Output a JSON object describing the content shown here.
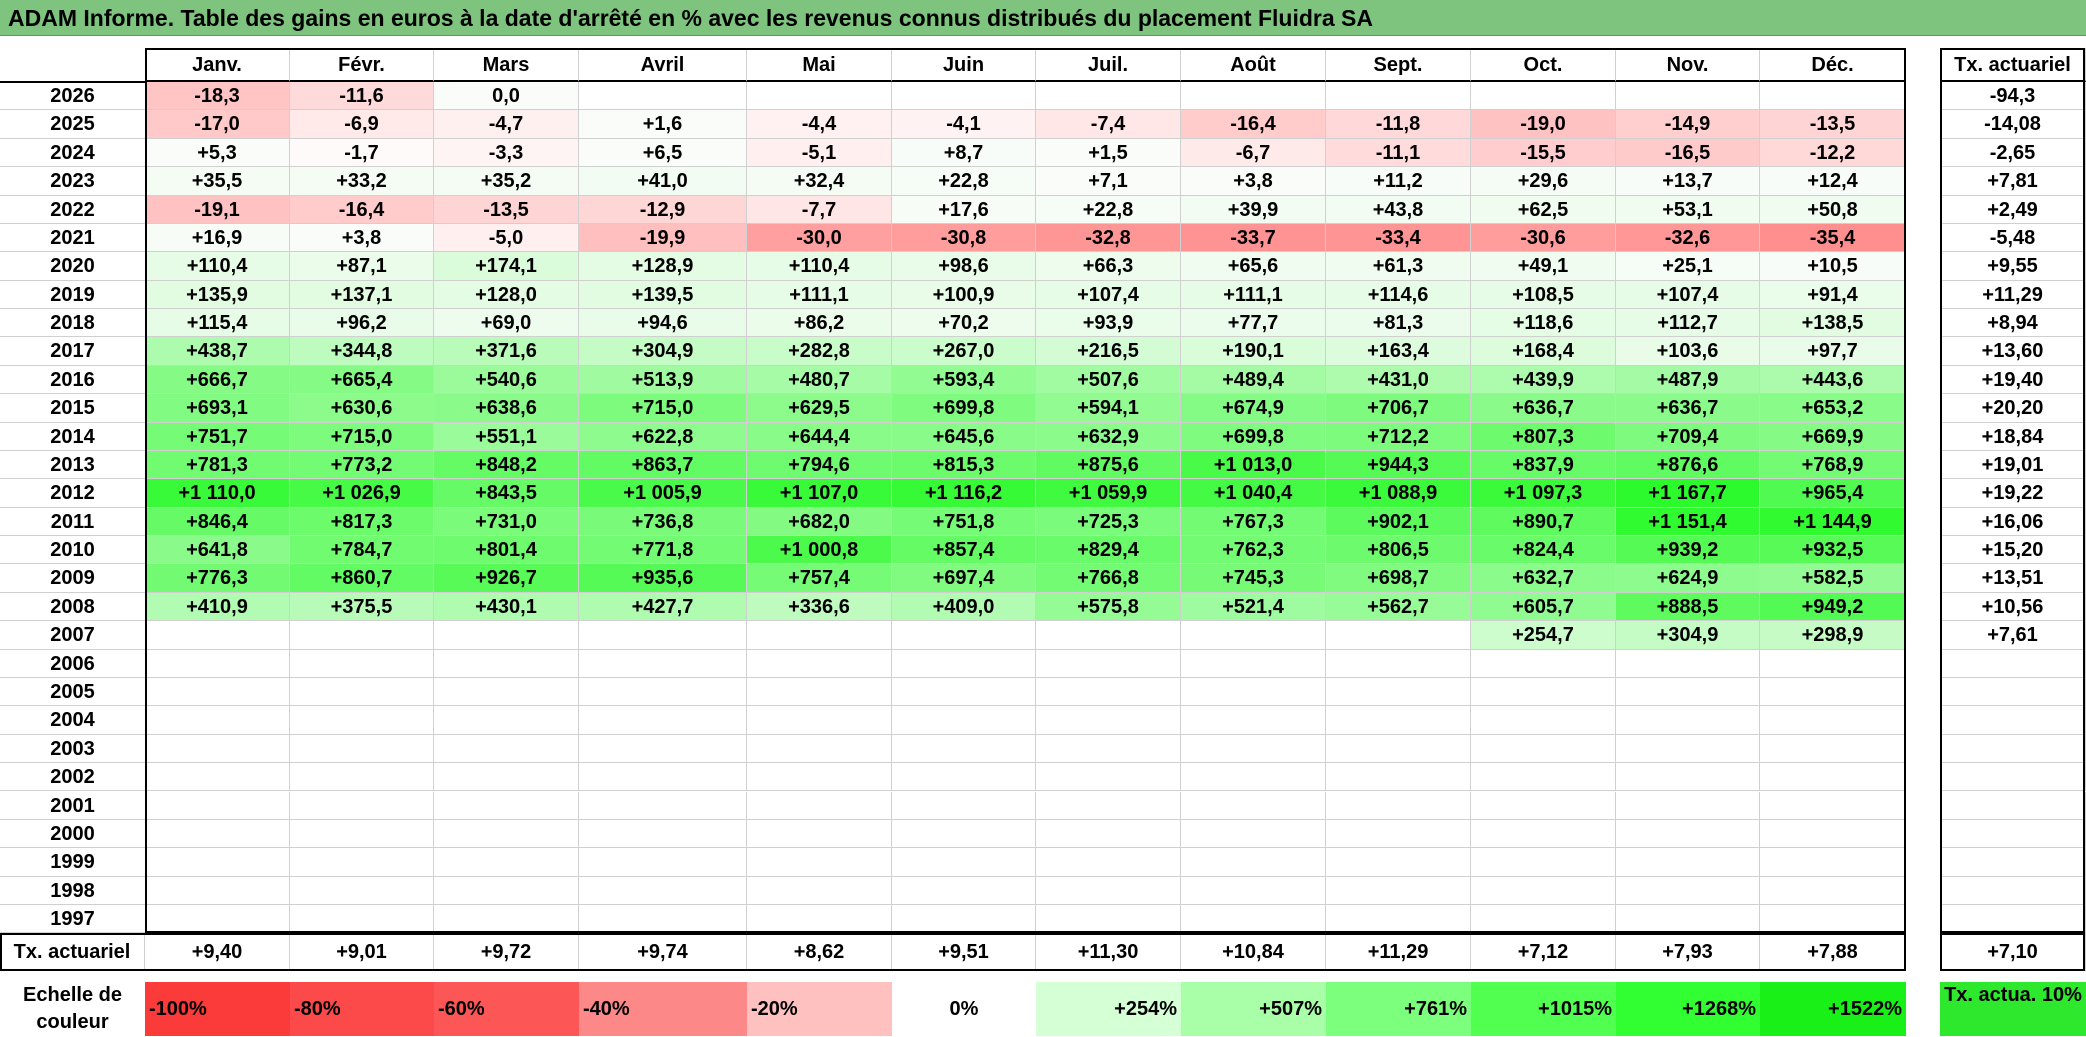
{
  "title": "ADAM Informe. Table des gains en euros à la date d'arrêté en % avec les revenus connus distribués du placement Fluidra SA",
  "months": [
    "Janv.",
    "Févr.",
    "Mars",
    "Avril",
    "Mai",
    "Juin",
    "Juil.",
    "Août",
    "Sept.",
    "Oct.",
    "Nov.",
    "Déc."
  ],
  "tx_header": "Tx. actuariel",
  "rows": [
    {
      "year": "2026",
      "values": [
        "-18,3",
        "-11,6",
        "0,0",
        "",
        "",
        "",
        "",
        "",
        "",
        "",
        "",
        ""
      ],
      "tx": "-94,3"
    },
    {
      "year": "2025",
      "values": [
        "-17,0",
        "-6,9",
        "-4,7",
        "+1,6",
        "-4,4",
        "-4,1",
        "-7,4",
        "-16,4",
        "-11,8",
        "-19,0",
        "-14,9",
        "-13,5"
      ],
      "tx": "-14,08"
    },
    {
      "year": "2024",
      "values": [
        "+5,3",
        "-1,7",
        "-3,3",
        "+6,5",
        "-5,1",
        "+8,7",
        "+1,5",
        "-6,7",
        "-11,1",
        "-15,5",
        "-16,5",
        "-12,2"
      ],
      "tx": "-2,65"
    },
    {
      "year": "2023",
      "values": [
        "+35,5",
        "+33,2",
        "+35,2",
        "+41,0",
        "+32,4",
        "+22,8",
        "+7,1",
        "+3,8",
        "+11,2",
        "+29,6",
        "+13,7",
        "+12,4"
      ],
      "tx": "+7,81"
    },
    {
      "year": "2022",
      "values": [
        "-19,1",
        "-16,4",
        "-13,5",
        "-12,9",
        "-7,7",
        "+17,6",
        "+22,8",
        "+39,9",
        "+43,8",
        "+62,5",
        "+53,1",
        "+50,8"
      ],
      "tx": "+2,49"
    },
    {
      "year": "2021",
      "values": [
        "+16,9",
        "+3,8",
        "-5,0",
        "-19,9",
        "-30,0",
        "-30,8",
        "-32,8",
        "-33,7",
        "-33,4",
        "-30,6",
        "-32,6",
        "-35,4"
      ],
      "tx": "-5,48"
    },
    {
      "year": "2020",
      "values": [
        "+110,4",
        "+87,1",
        "+174,1",
        "+128,9",
        "+110,4",
        "+98,6",
        "+66,3",
        "+65,6",
        "+61,3",
        "+49,1",
        "+25,1",
        "+10,5"
      ],
      "tx": "+9,55"
    },
    {
      "year": "2019",
      "values": [
        "+135,9",
        "+137,1",
        "+128,0",
        "+139,5",
        "+111,1",
        "+100,9",
        "+107,4",
        "+111,1",
        "+114,6",
        "+108,5",
        "+107,4",
        "+91,4"
      ],
      "tx": "+11,29"
    },
    {
      "year": "2018",
      "values": [
        "+115,4",
        "+96,2",
        "+69,0",
        "+94,6",
        "+86,2",
        "+70,2",
        "+93,9",
        "+77,7",
        "+81,3",
        "+118,6",
        "+112,7",
        "+138,5"
      ],
      "tx": "+8,94"
    },
    {
      "year": "2017",
      "values": [
        "+438,7",
        "+344,8",
        "+371,6",
        "+304,9",
        "+282,8",
        "+267,0",
        "+216,5",
        "+190,1",
        "+163,4",
        "+168,4",
        "+103,6",
        "+97,7"
      ],
      "tx": "+13,60"
    },
    {
      "year": "2016",
      "values": [
        "+666,7",
        "+665,4",
        "+540,6",
        "+513,9",
        "+480,7",
        "+593,4",
        "+507,6",
        "+489,4",
        "+431,0",
        "+439,9",
        "+487,9",
        "+443,6"
      ],
      "tx": "+19,40"
    },
    {
      "year": "2015",
      "values": [
        "+693,1",
        "+630,6",
        "+638,6",
        "+715,0",
        "+629,5",
        "+699,8",
        "+594,1",
        "+674,9",
        "+706,7",
        "+636,7",
        "+636,7",
        "+653,2"
      ],
      "tx": "+20,20"
    },
    {
      "year": "2014",
      "values": [
        "+751,7",
        "+715,0",
        "+551,1",
        "+622,8",
        "+644,4",
        "+645,6",
        "+632,9",
        "+699,8",
        "+712,2",
        "+807,3",
        "+709,4",
        "+669,9"
      ],
      "tx": "+18,84"
    },
    {
      "year": "2013",
      "values": [
        "+781,3",
        "+773,2",
        "+848,2",
        "+863,7",
        "+794,6",
        "+815,3",
        "+875,6",
        "+1 013,0",
        "+944,3",
        "+837,9",
        "+876,6",
        "+768,9"
      ],
      "tx": "+19,01"
    },
    {
      "year": "2012",
      "values": [
        "+1 110,0",
        "+1 026,9",
        "+843,5",
        "+1 005,9",
        "+1 107,0",
        "+1 116,2",
        "+1 059,9",
        "+1 040,4",
        "+1 088,9",
        "+1 097,3",
        "+1 167,7",
        "+965,4"
      ],
      "tx": "+19,22"
    },
    {
      "year": "2011",
      "values": [
        "+846,4",
        "+817,3",
        "+731,0",
        "+736,8",
        "+682,0",
        "+751,8",
        "+725,3",
        "+767,3",
        "+902,1",
        "+890,7",
        "+1 151,4",
        "+1 144,9"
      ],
      "tx": "+16,06"
    },
    {
      "year": "2010",
      "values": [
        "+641,8",
        "+784,7",
        "+801,4",
        "+771,8",
        "+1 000,8",
        "+857,4",
        "+829,4",
        "+762,3",
        "+806,5",
        "+824,4",
        "+939,2",
        "+932,5"
      ],
      "tx": "+15,20"
    },
    {
      "year": "2009",
      "values": [
        "+776,3",
        "+860,7",
        "+926,7",
        "+935,6",
        "+757,4",
        "+697,4",
        "+766,8",
        "+745,3",
        "+698,7",
        "+632,7",
        "+624,9",
        "+582,5"
      ],
      "tx": "+13,51"
    },
    {
      "year": "2008",
      "values": [
        "+410,9",
        "+375,5",
        "+430,1",
        "+427,7",
        "+336,6",
        "+409,0",
        "+575,8",
        "+521,4",
        "+562,7",
        "+605,7",
        "+888,5",
        "+949,2"
      ],
      "tx": "+10,56"
    },
    {
      "year": "2007",
      "values": [
        "",
        "",
        "",
        "",
        "",
        "",
        "",
        "",
        "",
        "+254,7",
        "+304,9",
        "+298,9"
      ],
      "tx": "+7,61"
    },
    {
      "year": "2006",
      "values": [
        "",
        "",
        "",
        "",
        "",
        "",
        "",
        "",
        "",
        "",
        "",
        ""
      ],
      "tx": ""
    },
    {
      "year": "2005",
      "values": [
        "",
        "",
        "",
        "",
        "",
        "",
        "",
        "",
        "",
        "",
        "",
        ""
      ],
      "tx": ""
    },
    {
      "year": "2004",
      "values": [
        "",
        "",
        "",
        "",
        "",
        "",
        "",
        "",
        "",
        "",
        "",
        ""
      ],
      "tx": ""
    },
    {
      "year": "2003",
      "values": [
        "",
        "",
        "",
        "",
        "",
        "",
        "",
        "",
        "",
        "",
        "",
        ""
      ],
      "tx": ""
    },
    {
      "year": "2002",
      "values": [
        "",
        "",
        "",
        "",
        "",
        "",
        "",
        "",
        "",
        "",
        "",
        ""
      ],
      "tx": ""
    },
    {
      "year": "2001",
      "values": [
        "",
        "",
        "",
        "",
        "",
        "",
        "",
        "",
        "",
        "",
        "",
        ""
      ],
      "tx": ""
    },
    {
      "year": "2000",
      "values": [
        "",
        "",
        "",
        "",
        "",
        "",
        "",
        "",
        "",
        "",
        "",
        ""
      ],
      "tx": ""
    },
    {
      "year": "1999",
      "values": [
        "",
        "",
        "",
        "",
        "",
        "",
        "",
        "",
        "",
        "",
        "",
        ""
      ],
      "tx": ""
    },
    {
      "year": "1998",
      "values": [
        "",
        "",
        "",
        "",
        "",
        "",
        "",
        "",
        "",
        "",
        "",
        ""
      ],
      "tx": ""
    },
    {
      "year": "1997",
      "values": [
        "",
        "",
        "",
        "",
        "",
        "",
        "",
        "",
        "",
        "",
        "",
        ""
      ],
      "tx": ""
    }
  ],
  "summary_row": {
    "label": "Tx. actuariel",
    "values": [
      "+9,40",
      "+9,01",
      "+9,72",
      "+9,74",
      "+8,62",
      "+9,51",
      "+11,30",
      "+10,84",
      "+11,29",
      "+7,12",
      "+7,93",
      "+7,88"
    ],
    "total": "+7,10"
  },
  "scale": {
    "label": "Echelle de couleur",
    "items": [
      {
        "text": "-100%",
        "color": "#fb3a3a"
      },
      {
        "text": "-80%",
        "color": "#fc4a4a"
      },
      {
        "text": "-60%",
        "color": "#fd5656"
      },
      {
        "text": "-40%",
        "color": "#fd8888"
      },
      {
        "text": "-20%",
        "color": "#ffc0c0"
      },
      {
        "text": "0%",
        "color": "#ffffff"
      },
      {
        "text": "+254%",
        "color": "#d5ffd5"
      },
      {
        "text": "+507%",
        "color": "#a8ffa8"
      },
      {
        "text": "+761%",
        "color": "#7cff7c"
      },
      {
        "text": "+1015%",
        "color": "#50ff50"
      },
      {
        "text": "+1268%",
        "color": "#32ff32"
      },
      {
        "text": "+1522%",
        "color": "#18f018"
      }
    ],
    "tx_legend": "Tx. actua. 10%",
    "tx_legend_color": "#2ee82e"
  }
}
